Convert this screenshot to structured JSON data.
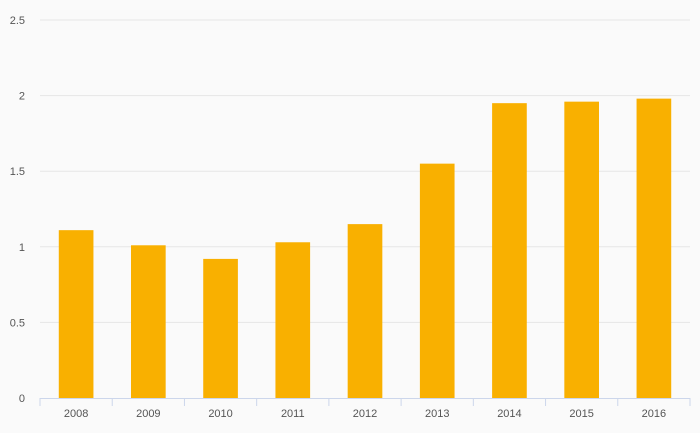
{
  "chart_data": {
    "type": "bar",
    "categories": [
      "2008",
      "2009",
      "2010",
      "2011",
      "2012",
      "2013",
      "2014",
      "2015",
      "2016"
    ],
    "values": [
      1.11,
      1.01,
      0.92,
      1.03,
      1.15,
      1.55,
      1.95,
      1.96,
      1.98
    ],
    "ylim": [
      0,
      2.5
    ],
    "yticks": [
      "0",
      "0.5",
      "1",
      "1.5",
      "2",
      "2.5"
    ],
    "grid": true,
    "bar_color": "#f9b000",
    "grid_color": "#e6e6e6",
    "axis_color": "#ccd6eb"
  }
}
